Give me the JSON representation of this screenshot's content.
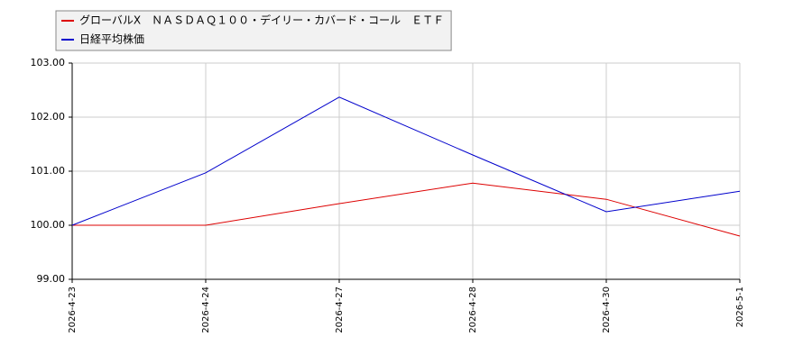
{
  "chart_data": {
    "type": "line",
    "categories": [
      "2026-4-23",
      "2026-4-24",
      "2026-4-27",
      "2026-4-28",
      "2026-4-30",
      "2026-5-1"
    ],
    "series": [
      {
        "name": "グローバルX　ＮＡＳＤＡＱ１００・デイリー・カバード・コール　ＥＴＦ",
        "color": "#dd0000",
        "values": [
          100.0,
          100.0,
          100.4,
          100.78,
          100.48,
          99.8
        ]
      },
      {
        "name": "日経平均株価",
        "color": "#0000cc",
        "values": [
          100.0,
          100.97,
          102.37,
          101.3,
          100.25,
          100.63
        ]
      }
    ],
    "ylim": [
      99,
      103
    ],
    "yticks": [
      {
        "value": 99,
        "label": "99.00"
      },
      {
        "value": 100,
        "label": "100.00"
      },
      {
        "value": 101,
        "label": "101.00"
      },
      {
        "value": 102,
        "label": "102.00"
      },
      {
        "value": 103,
        "label": "103.00"
      }
    ],
    "grid": true,
    "legend": "top-left"
  }
}
